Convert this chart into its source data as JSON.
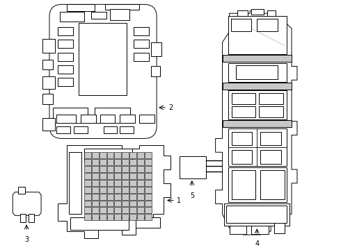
{
  "bg_color": "#ffffff",
  "line_color": "#000000",
  "gray_color": "#c8c8c8",
  "label_color": "#000000"
}
